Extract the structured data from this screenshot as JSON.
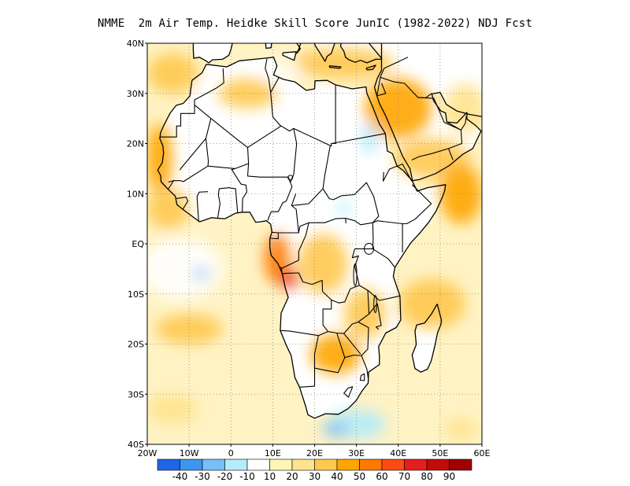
{
  "title": "NMME  2m Air Temp. Heidke Skill Score JunIC (1982-2022) NDJ Fcst",
  "map": {
    "lon_range": [
      -20,
      60
    ],
    "lat_range": [
      -40,
      40
    ],
    "lat_ticks": [
      {
        "value": 40,
        "label": "40N"
      },
      {
        "value": 30,
        "label": "30N"
      },
      {
        "value": 20,
        "label": "20N"
      },
      {
        "value": 10,
        "label": "10N"
      },
      {
        "value": 0,
        "label": "EQ"
      },
      {
        "value": -10,
        "label": "10S"
      },
      {
        "value": -20,
        "label": "20S"
      },
      {
        "value": -30,
        "label": "30S"
      },
      {
        "value": -40,
        "label": "40S"
      }
    ],
    "lon_ticks": [
      {
        "value": -20,
        "label": "20W"
      },
      {
        "value": -10,
        "label": "10W"
      },
      {
        "value": 0,
        "label": "0"
      },
      {
        "value": 10,
        "label": "10E"
      },
      {
        "value": 20,
        "label": "20E"
      },
      {
        "value": 30,
        "label": "30E"
      },
      {
        "value": 40,
        "label": "40E"
      },
      {
        "value": 50,
        "label": "50E"
      },
      {
        "value": 60,
        "label": "60E"
      }
    ],
    "grid": true,
    "land_color": "#ffffff",
    "ocean_base_color": "#fff3c4"
  },
  "colorbar": {
    "colors": [
      "#1f66e6",
      "#3c96f0",
      "#78bef8",
      "#b4ecfa",
      "#ffffff",
      "#fff5b4",
      "#ffe38c",
      "#ffc850",
      "#ffa500",
      "#ff7800",
      "#ff4a14",
      "#e61e1e",
      "#c30a0a",
      "#a00000"
    ],
    "labels": [
      "-40",
      "-30",
      "-20",
      "-10",
      "10",
      "20",
      "30",
      "40",
      "50",
      "60",
      "70",
      "80",
      "90"
    ]
  },
  "skill_patches": [
    {
      "lon": -17,
      "lat": 17,
      "rx": 3,
      "ry": 7,
      "level": 8
    },
    {
      "lon": -14,
      "lat": 34,
      "rx": 6,
      "ry": 4,
      "level": 7
    },
    {
      "lon": 4,
      "lat": 30,
      "rx": 7,
      "ry": 3,
      "level": 7
    },
    {
      "lon": 27,
      "lat": 36,
      "rx": 12,
      "ry": 3,
      "level": 7
    },
    {
      "lon": 40,
      "lat": 27,
      "rx": 8,
      "ry": 6,
      "level": 8
    },
    {
      "lon": 48,
      "lat": 17,
      "rx": 9,
      "ry": 4,
      "level": 7
    },
    {
      "lon": 55,
      "lat": 10,
      "rx": 5,
      "ry": 6,
      "level": 8
    },
    {
      "lon": 56,
      "lat": 27,
      "rx": 5,
      "ry": 5,
      "level": 6
    },
    {
      "lon": -15,
      "lat": 7,
      "rx": 5,
      "ry": 4,
      "level": 7
    },
    {
      "lon": 11,
      "lat": -3,
      "rx": 3,
      "ry": 5,
      "level": 9
    },
    {
      "lon": 14,
      "lat": -7,
      "rx": 2,
      "ry": 2,
      "level": 11
    },
    {
      "lon": 22,
      "lat": -4,
      "rx": 6,
      "ry": 6,
      "level": 7
    },
    {
      "lon": 25,
      "lat": -22,
      "rx": 6,
      "ry": 4,
      "level": 8
    },
    {
      "lon": 32,
      "lat": -14,
      "rx": 5,
      "ry": 5,
      "level": 7
    },
    {
      "lon": 48,
      "lat": -12,
      "rx": 8,
      "ry": 5,
      "level": 7
    },
    {
      "lon": -10,
      "lat": -17,
      "rx": 8,
      "ry": 3,
      "level": 7
    },
    {
      "lon": -14,
      "lat": -33,
      "rx": 6,
      "ry": 3,
      "level": 6
    },
    {
      "lon": 55,
      "lat": -37,
      "rx": 4,
      "ry": 2,
      "level": 6
    },
    {
      "lon": -12,
      "lat": -5,
      "rx": 10,
      "ry": 6,
      "level": 4
    },
    {
      "lon": -7,
      "lat": -6,
      "rx": 2,
      "ry": 1,
      "level": 2
    },
    {
      "lon": 30,
      "lat": -36,
      "rx": 7,
      "ry": 3,
      "level": 3
    },
    {
      "lon": 25,
      "lat": -37,
      "rx": 3,
      "ry": 1.5,
      "level": 2
    },
    {
      "lon": 33,
      "lat": 21,
      "rx": 2,
      "ry": 3,
      "level": 3
    },
    {
      "lon": 27,
      "lat": 7,
      "rx": 1.5,
      "ry": 1.5,
      "level": 3
    },
    {
      "lon": 12,
      "lat": 34,
      "rx": 5,
      "ry": 2,
      "level": 4
    }
  ],
  "country_borders": [
    [
      [
        -8.7,
        27.7
      ],
      [
        -8.7,
        26
      ],
      [
        -12,
        26
      ],
      [
        -12,
        23.5
      ],
      [
        -13,
        23.5
      ],
      [
        -13,
        21.3
      ],
      [
        -17,
        21.3
      ]
    ],
    [
      [
        -8.7,
        27.7
      ],
      [
        -4.8,
        25
      ],
      [
        1.2,
        21
      ],
      [
        4,
        19.2
      ],
      [
        4.2,
        16
      ],
      [
        1,
        15
      ],
      [
        -5.5,
        15.5
      ],
      [
        -5.4,
        16.5
      ],
      [
        -6,
        21
      ],
      [
        -4.8,
        25
      ]
    ],
    [
      [
        -6,
        21
      ],
      [
        -12,
        15
      ],
      [
        -12.2,
        14.7
      ]
    ],
    [
      [
        -1.9,
        35
      ],
      [
        -1.7,
        32.1
      ],
      [
        -3.6,
        31
      ],
      [
        -8.7,
        28.7
      ],
      [
        -8.7,
        27.7
      ]
    ],
    [
      [
        8.6,
        36.9
      ],
      [
        8.2,
        35
      ],
      [
        9,
        33
      ],
      [
        9.5,
        30.2
      ],
      [
        10,
        25.3
      ],
      [
        11.9,
        23.5
      ],
      [
        12,
        23.5
      ],
      [
        14,
        22.5
      ],
      [
        15,
        23
      ],
      [
        24,
        19.5
      ],
      [
        24,
        20
      ],
      [
        25,
        20
      ],
      [
        25,
        22
      ],
      [
        25,
        31.6
      ]
    ],
    [
      [
        11.5,
        33.2
      ],
      [
        9.5,
        30.2
      ]
    ],
    [
      [
        4,
        19.2
      ],
      [
        12,
        23.5
      ]
    ],
    [
      [
        4.2,
        16
      ],
      [
        4,
        13.5
      ],
      [
        7,
        13.3
      ],
      [
        10,
        13.3
      ],
      [
        13.7,
        13.3
      ],
      [
        14.2,
        12.3
      ],
      [
        15,
        13.8
      ],
      [
        15.7,
        20
      ],
      [
        15,
        23
      ]
    ],
    [
      [
        1,
        15
      ],
      [
        0.2,
        14.8
      ],
      [
        2.4,
        11.9
      ],
      [
        3.6,
        11.7
      ],
      [
        3.8,
        10.3
      ],
      [
        2.8,
        9
      ],
      [
        2.7,
        6.3
      ]
    ],
    [
      [
        1.6,
        6.2
      ],
      [
        1.1,
        11
      ],
      [
        -0.1,
        11.1
      ],
      [
        -0.3,
        11.2
      ],
      [
        -2.8,
        11
      ],
      [
        -3,
        9.8
      ],
      [
        -2.6,
        8
      ],
      [
        -3.2,
        5
      ]
    ],
    [
      [
        -5.5,
        15.5
      ],
      [
        -11.4,
        12.4
      ],
      [
        -12,
        12.6
      ],
      [
        -13.7,
        12.6
      ],
      [
        -15,
        12.3
      ]
    ],
    [
      [
        -5.5,
        10.4
      ],
      [
        -7.6,
        10.3
      ],
      [
        -8.1,
        9.4
      ],
      [
        -7.7,
        4.4
      ]
    ],
    [
      [
        -11.5,
        6.9
      ],
      [
        -10.3,
        8.5
      ],
      [
        -10.7,
        9.3
      ],
      [
        -13.2,
        9
      ]
    ],
    [
      [
        -15,
        10.9
      ],
      [
        -13.7,
        12.6
      ]
    ],
    [
      [
        13.7,
        13.3
      ],
      [
        14.6,
        11.4
      ],
      [
        13.2,
        8.5
      ],
      [
        12.4,
        8.2
      ],
      [
        11.3,
        6.4
      ],
      [
        9.6,
        6.4
      ],
      [
        8.8,
        4.7
      ]
    ],
    [
      [
        15.5,
        10
      ],
      [
        14.5,
        7.6
      ],
      [
        15.6,
        6.9
      ],
      [
        16.2,
        2.2
      ],
      [
        13.3,
        2.2
      ],
      [
        11.3,
        2.2
      ],
      [
        9.8,
        2.3
      ]
    ],
    [
      [
        14.5,
        7.6
      ],
      [
        18.6,
        8
      ],
      [
        22,
        11
      ],
      [
        22.4,
        13.5
      ],
      [
        23.7,
        19.5
      ]
    ],
    [
      [
        16.2,
        2.2
      ],
      [
        16.5,
        3.5
      ],
      [
        18.6,
        4.2
      ],
      [
        22.4,
        4.2
      ],
      [
        25,
        5
      ],
      [
        27.4,
        5.1
      ],
      [
        27.5,
        4.1
      ]
    ],
    [
      [
        22,
        11
      ],
      [
        23.5,
        9
      ],
      [
        24.5,
        8.8
      ],
      [
        26.5,
        9.6
      ],
      [
        29.5,
        9.8
      ],
      [
        32.4,
        12.2
      ],
      [
        34.1,
        9.5
      ],
      [
        35.3,
        5.5
      ],
      [
        33.9,
        4.2
      ]
    ],
    [
      [
        24,
        20
      ],
      [
        36.9,
        22
      ]
    ],
    [
      [
        36.5,
        14.3
      ],
      [
        36.4,
        12.5
      ],
      [
        37.9,
        14.9
      ],
      [
        41,
        15.9
      ],
      [
        43.2,
        12.5
      ]
    ],
    [
      [
        33.9,
        4.2
      ],
      [
        35,
        4.6
      ],
      [
        37,
        4.4
      ],
      [
        41,
        4
      ],
      [
        42,
        4
      ],
      [
        44,
        4.9
      ],
      [
        47.9,
        8
      ],
      [
        43.3,
        11.8
      ]
    ],
    [
      [
        41,
        4
      ],
      [
        41,
        -1.7
      ]
    ],
    [
      [
        33.9,
        4.2
      ],
      [
        31,
        3.8
      ],
      [
        29.6,
        4.6
      ],
      [
        27.4,
        5.1
      ]
    ],
    [
      [
        33.9,
        4.2
      ],
      [
        34,
        1
      ],
      [
        33.9,
        -1
      ],
      [
        37.6,
        -3
      ],
      [
        39.2,
        -4.7
      ]
    ],
    [
      [
        29.6,
        -1
      ],
      [
        30.5,
        -1
      ],
      [
        33.9,
        -1
      ]
    ],
    [
      [
        29.6,
        -4.5
      ],
      [
        30.5,
        -2.4
      ],
      [
        29,
        -2.8
      ],
      [
        29.6,
        -1
      ]
    ],
    [
      [
        29.6,
        -4.5
      ],
      [
        30.7,
        -8.3
      ],
      [
        32.9,
        -9.4
      ],
      [
        35.5,
        -11.3
      ],
      [
        40.4,
        -10.4
      ]
    ],
    [
      [
        11.3,
        2.2
      ],
      [
        11.3,
        1
      ],
      [
        9.3,
        1.1
      ]
    ],
    [
      [
        18.6,
        4.2
      ],
      [
        17.9,
        1.7
      ],
      [
        16.2,
        -1.5
      ],
      [
        16.2,
        -3.3
      ],
      [
        12.1,
        -4.9
      ],
      [
        11.8,
        -4.6
      ]
    ],
    [
      [
        12.1,
        -4.9
      ],
      [
        12.2,
        -6
      ],
      [
        13.1,
        -5.9
      ],
      [
        16.2,
        -5.8
      ],
      [
        17.2,
        -7.6
      ],
      [
        19.4,
        -8.1
      ],
      [
        21.8,
        -7.3
      ],
      [
        21.9,
        -9.5
      ],
      [
        24,
        -11.2
      ],
      [
        24,
        -13
      ],
      [
        22,
        -13
      ],
      [
        22,
        -16.2
      ],
      [
        23.2,
        -17.5
      ],
      [
        20.9,
        -18.3
      ],
      [
        13.9,
        -17.4
      ],
      [
        11.8,
        -17.3
      ]
    ],
    [
      [
        24,
        -11.2
      ],
      [
        25.8,
        -11.8
      ],
      [
        27.2,
        -11.6
      ],
      [
        28.5,
        -9
      ],
      [
        30.7,
        -8.3
      ]
    ],
    [
      [
        23.2,
        -17.5
      ],
      [
        25.3,
        -17.8
      ],
      [
        27,
        -17.9
      ],
      [
        29,
        -16
      ],
      [
        30.4,
        -15.6
      ],
      [
        33,
        -14
      ],
      [
        35,
        -11.9
      ]
    ],
    [
      [
        20,
        -22
      ],
      [
        20,
        -24.8
      ],
      [
        20,
        -28.4
      ],
      [
        16.5,
        -28.6
      ]
    ],
    [
      [
        20,
        -22
      ],
      [
        20.9,
        -18.3
      ]
    ],
    [
      [
        20,
        -24.8
      ],
      [
        23,
        -25.3
      ],
      [
        25.6,
        -25.7
      ],
      [
        27.2,
        -22.7
      ],
      [
        29.4,
        -22.2
      ],
      [
        31.2,
        -22.3
      ],
      [
        32.5,
        -25
      ],
      [
        32.8,
        -26.8
      ]
    ],
    [
      [
        25.3,
        -17.8
      ],
      [
        27.2,
        -22.7
      ]
    ],
    [
      [
        27,
        -17.9
      ],
      [
        31,
        -22
      ]
    ],
    [
      [
        30.4,
        -15.6
      ],
      [
        32.9,
        -16.7
      ],
      [
        32.7,
        -21
      ],
      [
        31.2,
        -22.3
      ]
    ],
    [
      [
        33,
        -14
      ],
      [
        32.7,
        -9.3
      ]
    ],
    [
      [
        35,
        -11.9
      ],
      [
        35.9,
        -16.3
      ],
      [
        34.7,
        -16.6
      ],
      [
        35.3,
        -17.1
      ]
    ],
    [
      [
        29.1,
        -28.5
      ],
      [
        28.1,
        -30.6
      ],
      [
        27,
        -29.8
      ],
      [
        28,
        -28.8
      ],
      [
        29.1,
        -28.5
      ]
    ],
    [
      [
        31.9,
        -25.9
      ],
      [
        31.1,
        -26.3
      ],
      [
        30.9,
        -27.2
      ],
      [
        31.9,
        -27.3
      ],
      [
        31.9,
        -25.9
      ]
    ]
  ],
  "middle_east_borders": [
    [
      [
        34.9,
        29.5
      ],
      [
        35.7,
        33.2
      ],
      [
        36.6,
        35
      ],
      [
        42.3,
        37.2
      ]
    ],
    [
      [
        35.7,
        33.2
      ],
      [
        39,
        32.3
      ],
      [
        41.5,
        32
      ],
      [
        44.7,
        29.2
      ],
      [
        48.5,
        29
      ]
    ],
    [
      [
        36,
        32
      ],
      [
        37,
        30
      ],
      [
        34.9,
        29.5
      ]
    ],
    [
      [
        48.5,
        29
      ],
      [
        51,
        24.2
      ],
      [
        55,
        22.7
      ],
      [
        55.2,
        20
      ],
      [
        52,
        19
      ],
      [
        48,
        18
      ],
      [
        45,
        17.4
      ],
      [
        43.2,
        16.7
      ]
    ],
    [
      [
        51.6,
        24.3
      ],
      [
        55,
        22.7
      ]
    ],
    [
      [
        44.7,
        29.2
      ],
      [
        46.5,
        29.1
      ],
      [
        48,
        30
      ]
    ],
    [
      [
        55,
        22.7
      ],
      [
        56,
        24
      ],
      [
        56.3,
        25.5
      ]
    ],
    [
      [
        52,
        19
      ],
      [
        53.1,
        16.7
      ]
    ]
  ]
}
